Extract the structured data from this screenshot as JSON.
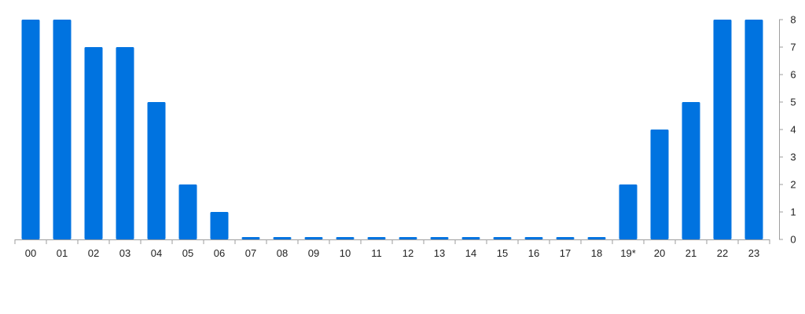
{
  "chart_data": {
    "type": "bar",
    "categories": [
      "00",
      "01",
      "02",
      "03",
      "04",
      "05",
      "06",
      "07",
      "08",
      "09",
      "10",
      "11",
      "12",
      "13",
      "14",
      "15",
      "16",
      "17",
      "18",
      "19*",
      "20",
      "21",
      "22",
      "23"
    ],
    "values": [
      8,
      8,
      7,
      7,
      5,
      2,
      1,
      0,
      0,
      0,
      0,
      0,
      0,
      0,
      0,
      0,
      0,
      0,
      0,
      2,
      4,
      5,
      8,
      8
    ],
    "y_ticks": [
      "0",
      "1",
      "2",
      "3",
      "4",
      "5",
      "6",
      "7",
      "8"
    ],
    "ylim": [
      0,
      8
    ],
    "y_axis_side": "right",
    "grid": false,
    "legend": "none",
    "bar_color": "#0073e0",
    "axis_color": "#9e9e9e",
    "text_color": "#222222"
  }
}
